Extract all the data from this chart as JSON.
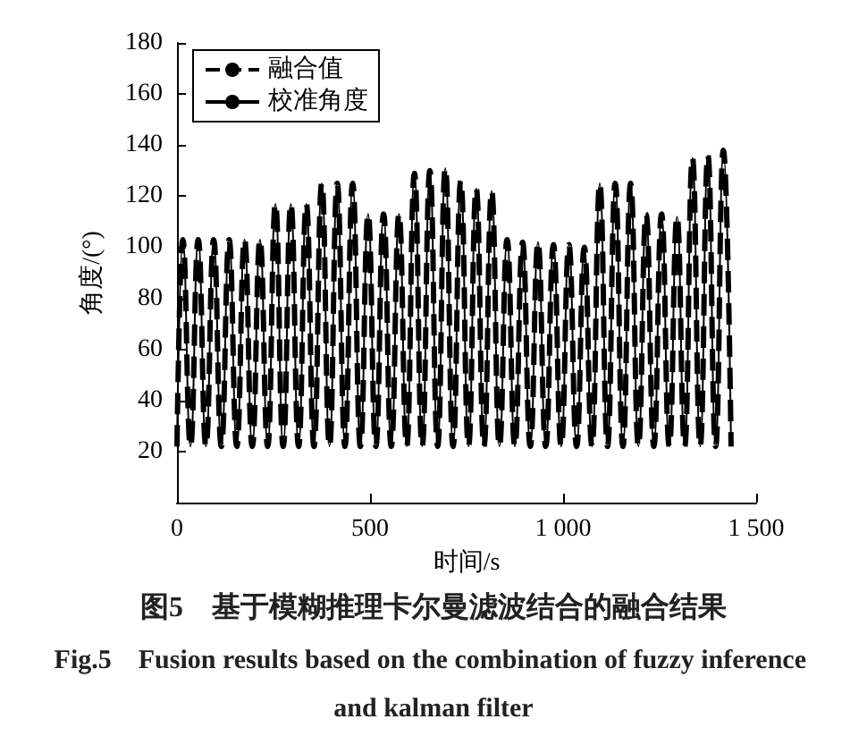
{
  "chart_data": {
    "type": "line",
    "title": "图5　基于模糊推理卡尔曼滤波结合的融合结果",
    "subtitle": "Fig.5　Fusion results based on the combination of fuzzy inference and kalman filter",
    "xlabel": "时间/s",
    "ylabel": "角度/(°)",
    "x": [
      0,
      15,
      35,
      55,
      75,
      95,
      115,
      135,
      155,
      175,
      195,
      215,
      235,
      255,
      275,
      295,
      315,
      335,
      355,
      375,
      395,
      415,
      435,
      455,
      475,
      495,
      515,
      535,
      555,
      575,
      595,
      615,
      635,
      655,
      675,
      695,
      715,
      735,
      755,
      775,
      795,
      815,
      835,
      855,
      875,
      895,
      915,
      935,
      955,
      975,
      995,
      1015,
      1035,
      1055,
      1075,
      1095,
      1115,
      1135,
      1155,
      1175,
      1195,
      1215,
      1235,
      1255,
      1275,
      1295,
      1315,
      1335,
      1355,
      1375,
      1395,
      1415,
      1435
    ],
    "series": [
      {
        "name": "融合值",
        "color": "#000000",
        "line_style": "dashed",
        "values": [
          22,
          103,
          22,
          103,
          22,
          103,
          22,
          103,
          22,
          103,
          22,
          103,
          22,
          117,
          22,
          117,
          22,
          117,
          22,
          125,
          22,
          125,
          22,
          125,
          22,
          113,
          22,
          113,
          22,
          113,
          22,
          129,
          22,
          130,
          22,
          131,
          22,
          126,
          22,
          123,
          22,
          122,
          22,
          103,
          22,
          102,
          22,
          102,
          22,
          101,
          22,
          101,
          22,
          100,
          22,
          125,
          22,
          125,
          22,
          125,
          22,
          113,
          22,
          113,
          22,
          112,
          22,
          135,
          22,
          136,
          22,
          138,
          22
        ]
      },
      {
        "name": "校准角度",
        "color": "#000000",
        "line_style": "solid",
        "values": [
          22,
          103,
          22,
          103,
          22,
          103,
          22,
          103,
          22,
          103,
          22,
          103,
          22,
          117,
          22,
          117,
          22,
          117,
          22,
          125,
          22,
          125,
          22,
          125,
          22,
          113,
          22,
          113,
          22,
          113,
          22,
          129,
          22,
          130,
          22,
          131,
          22,
          126,
          22,
          123,
          22,
          122,
          22,
          103,
          22,
          102,
          22,
          102,
          22,
          101,
          22,
          101,
          22,
          100,
          22,
          125,
          22,
          125,
          22,
          125,
          22,
          113,
          22,
          113,
          22,
          112,
          22,
          135,
          22,
          136,
          22,
          138,
          22
        ]
      }
    ],
    "xlim": [
      0,
      1500
    ],
    "xticks": [
      0,
      500,
      {
        "value": 1000,
        "label": "1 000"
      },
      {
        "value": 1500,
        "label": "1 500"
      }
    ],
    "ylim": [
      0,
      180
    ],
    "yticks": [
      20,
      40,
      60,
      80,
      100,
      120,
      140,
      160,
      180
    ],
    "legend": "top left",
    "grid": false,
    "marker": "none"
  }
}
